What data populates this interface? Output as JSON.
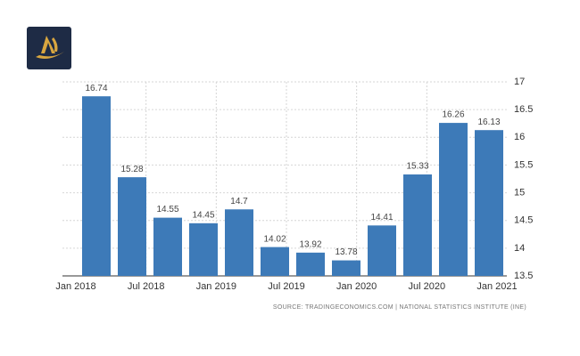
{
  "chart_data": {
    "type": "bar",
    "xticks": [
      "Jan 2018",
      "Jul 2018",
      "Jan 2019",
      "Jul 2019",
      "Jan 2020",
      "Jul 2020",
      "Jan 2021"
    ],
    "values": [
      16.74,
      15.28,
      14.55,
      14.45,
      14.7,
      14.02,
      13.92,
      13.78,
      14.41,
      15.33,
      16.26,
      16.13
    ],
    "color": "#3d7ab8",
    "ylim": [
      13.5,
      17
    ],
    "yticks": [
      13.5,
      14,
      14.5,
      15,
      15.5,
      16,
      16.5,
      17
    ],
    "grid": true,
    "source": "SOURCE: TRADINGECONOMICS.COM | NATIONAL STATISTICS INSTITUTE (INE)"
  }
}
